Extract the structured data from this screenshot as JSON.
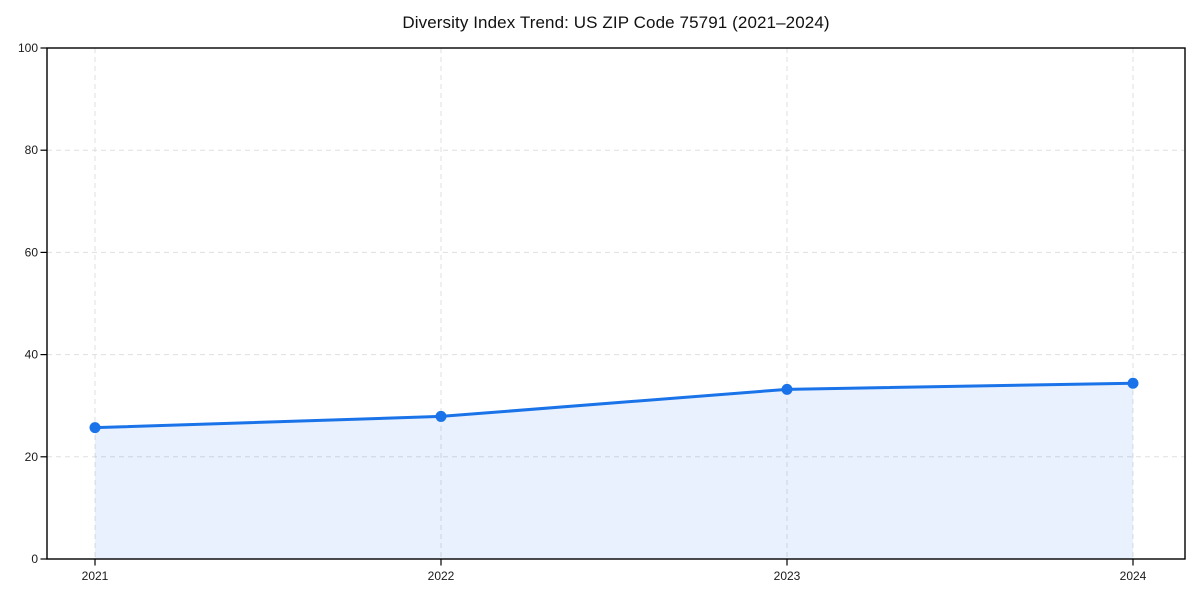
{
  "chart_data": {
    "type": "line",
    "title": "Diversity Index Trend: US ZIP Code 75791 (2021–2024)",
    "x": [
      "2021",
      "2022",
      "2023",
      "2024"
    ],
    "series": [
      {
        "name": "Diversity Index",
        "values": [
          25.7,
          27.9,
          33.2,
          34.4
        ]
      }
    ],
    "xlabel": "",
    "ylabel": "",
    "ylim": [
      0,
      100
    ],
    "yticks": [
      0,
      20,
      40,
      60,
      80,
      100
    ],
    "grid": "dashed",
    "legend": "none",
    "marker": "circle",
    "area_fill": true,
    "fill_opacity": 0.1,
    "colors": {
      "line": "#1a73e8",
      "marker": "#1a73e8",
      "grid": "#dfdfdf",
      "axis": "#000000",
      "tick_text": "#1a1a1a",
      "background": "#ffffff"
    }
  }
}
